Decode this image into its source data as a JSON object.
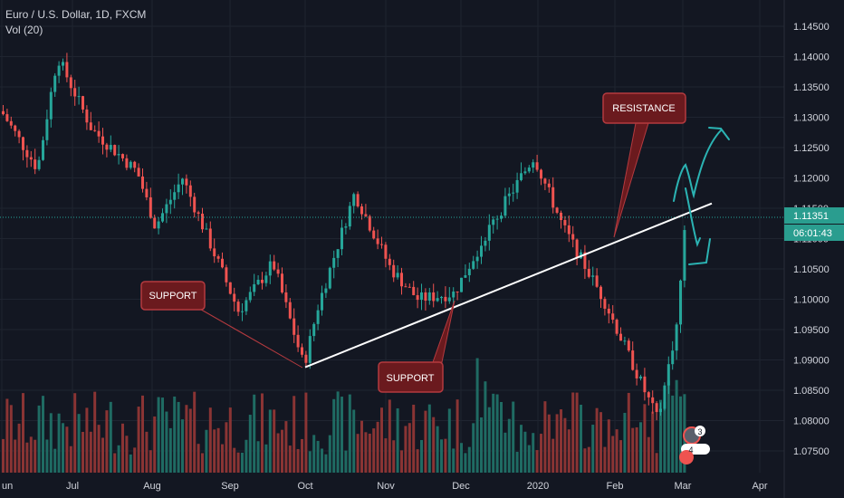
{
  "header": {
    "symbol_title": "Euro / U.S. Dollar, 1D, FXCM",
    "volume_label": "Vol (20)"
  },
  "price_axis": {
    "current_price": "1.11351",
    "countdown": "06:01:43"
  },
  "annotations": {
    "support_left": "SUPPORT",
    "support_mid": "SUPPORT",
    "resistance": "RESISTANCE",
    "badge_1": "3",
    "badge_2": "4"
  },
  "colors": {
    "background": "#131722",
    "grid": "#1f2430",
    "bull": "#26a69a",
    "bear": "#ef5350",
    "text": "#d1d4dc",
    "current_price_bg": "#2a9d8f",
    "callout_bg": "#6b1a1e",
    "callout_border": "#b43a3f",
    "trendline": "#ffffff",
    "projection": "#2bb3b3"
  },
  "chart_data": {
    "type": "candlestick",
    "title": "Euro / U.S. Dollar, 1D, FXCM",
    "x_tick_labels": [
      "Jun",
      "Jul",
      "Aug",
      "Sep",
      "Oct",
      "Nov",
      "Dec",
      "2020",
      "Feb",
      "Mar",
      "Apr"
    ],
    "y_tick_labels": [
      "1.14500",
      "1.14000",
      "1.13500",
      "1.13000",
      "1.12500",
      "1.12000",
      "1.11500",
      "1.11000",
      "1.10500",
      "1.10000",
      "1.09500",
      "1.09000",
      "1.08500",
      "1.08000",
      "1.07500"
    ],
    "ylim": [
      1.0725,
      1.1475
    ],
    "grid": true,
    "current_price": 1.11351,
    "volume_indicator": "Vol (20)",
    "trend_line": {
      "from": [
        "Oct",
        1.0888
      ],
      "to": [
        "Mar",
        1.1158
      ]
    },
    "price_path": [
      [
        "Jun",
        1.131
      ],
      [
        "Jun",
        1.1215
      ],
      [
        "Jul",
        1.14
      ],
      [
        "Jul",
        1.128
      ],
      [
        "Aug",
        1.121
      ],
      [
        "Aug",
        1.112
      ],
      [
        "Aug",
        1.12
      ],
      [
        "Sep",
        1.098
      ],
      [
        "Sep",
        1.106
      ],
      [
        "Oct",
        1.089
      ],
      [
        "Oct",
        1.099
      ],
      [
        "Oct",
        1.1175
      ],
      [
        "Nov",
        1.105
      ],
      [
        "Nov",
        1.1
      ],
      [
        "Dec",
        1.101
      ],
      [
        "Dec",
        1.112
      ],
      [
        "2020",
        1.1235
      ],
      [
        "2020",
        1.112
      ],
      [
        "Feb",
        1.1
      ],
      [
        "Feb",
        1.08
      ],
      [
        "Mar",
        1.096
      ],
      [
        "Mar",
        1.1135
      ]
    ],
    "annotations": [
      {
        "text": "SUPPORT",
        "at": [
          "Sep",
          1.0965
        ]
      },
      {
        "text": "SUPPORT",
        "at": [
          "Dec",
          1.099
        ]
      },
      {
        "text": "RESISTANCE",
        "at": [
          "Feb",
          1.111
        ]
      }
    ]
  }
}
